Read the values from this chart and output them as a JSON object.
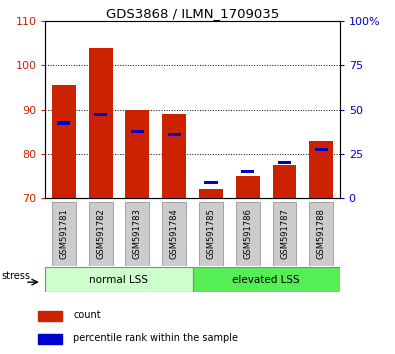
{
  "title": "GDS3868 / ILMN_1709035",
  "categories": [
    "GSM591781",
    "GSM591782",
    "GSM591783",
    "GSM591784",
    "GSM591785",
    "GSM591786",
    "GSM591787",
    "GSM591788"
  ],
  "red_values": [
    95.5,
    104.0,
    90.0,
    89.0,
    72.0,
    75.0,
    77.5,
    83.0
  ],
  "blue_values": [
    87.0,
    89.0,
    85.0,
    84.5,
    73.5,
    76.0,
    78.0,
    81.0
  ],
  "ylim_left": [
    70,
    110
  ],
  "ylim_right": [
    0,
    100
  ],
  "yticks_left": [
    70,
    80,
    90,
    100,
    110
  ],
  "yticks_right": [
    0,
    25,
    50,
    75,
    100
  ],
  "group1_label": "normal LSS",
  "group2_label": "elevated LSS",
  "group1_color": "#ccffcc",
  "group2_color": "#55ee55",
  "stress_label": "stress",
  "legend_red": "count",
  "legend_blue": "percentile rank within the sample",
  "bar_color_red": "#cc2200",
  "bar_color_blue": "#0000cc",
  "tick_label_bg": "#cccccc",
  "bar_width": 0.65,
  "baseline": 70,
  "fig_width": 3.95,
  "fig_height": 3.54
}
